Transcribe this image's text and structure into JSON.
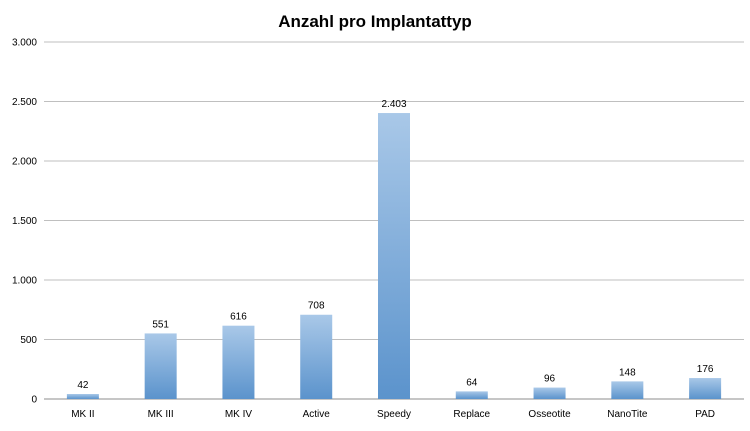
{
  "chart_data": {
    "type": "bar",
    "title": "Anzahl pro Implantattyp",
    "xlabel": "",
    "ylabel": "",
    "categories": [
      "MK II",
      "MK III",
      "MK IV",
      "Active",
      "Speedy",
      "Replace",
      "Osseotite",
      "NanoTite",
      "PAD"
    ],
    "values": [
      42,
      551,
      616,
      708,
      2403,
      64,
      96,
      148,
      176
    ],
    "value_labels": [
      "42",
      "551",
      "616",
      "708",
      "2.403",
      "64",
      "96",
      "148",
      "176"
    ],
    "ylim": [
      0,
      3000
    ],
    "yticks": [
      0,
      500,
      1000,
      1500,
      2000,
      2500,
      3000
    ],
    "ytick_labels": [
      "0",
      "500",
      "1.000",
      "1.500",
      "2.000",
      "2.500",
      "3.000"
    ],
    "grid": true,
    "legend": "none",
    "colors": {
      "bar_top": "#a9c8e8",
      "bar_bottom": "#5b93cc"
    }
  }
}
